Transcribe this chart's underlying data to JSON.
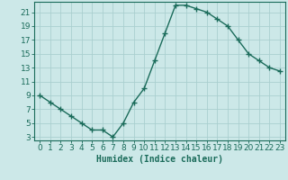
{
  "x": [
    0,
    1,
    2,
    3,
    4,
    5,
    6,
    7,
    8,
    9,
    10,
    11,
    12,
    13,
    14,
    15,
    16,
    17,
    18,
    19,
    20,
    21,
    22,
    23
  ],
  "y": [
    9,
    8,
    7,
    6,
    5,
    4,
    4,
    3,
    5,
    8,
    10,
    14,
    18,
    22,
    22,
    21.5,
    21,
    20,
    19,
    17,
    15,
    14,
    13,
    12.5
  ],
  "line_color": "#1a6b5a",
  "marker": "+",
  "marker_color": "#1a6b5a",
  "bg_color": "#cce8e8",
  "grid_color": "#aacfcf",
  "xlabel": "Humidex (Indice chaleur)",
  "yticks": [
    3,
    5,
    7,
    9,
    11,
    13,
    15,
    17,
    19,
    21
  ],
  "xticks": [
    0,
    1,
    2,
    3,
    4,
    5,
    6,
    7,
    8,
    9,
    10,
    11,
    12,
    13,
    14,
    15,
    16,
    17,
    18,
    19,
    20,
    21,
    22,
    23
  ],
  "ylim": [
    2.5,
    22.5
  ],
  "xlim": [
    -0.5,
    23.5
  ],
  "xlabel_fontsize": 7,
  "tick_fontsize": 6.5,
  "line_width": 1.0,
  "marker_size": 4
}
